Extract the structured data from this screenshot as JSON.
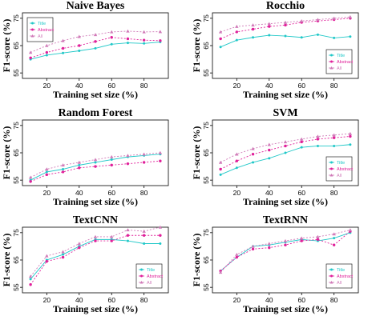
{
  "colors": {
    "Title": "#20c8c8",
    "Abstract": "#e0209a",
    "All": "#d07ab8"
  },
  "chart_data": [
    {
      "type": "line",
      "title": "Naive Bayes",
      "xlabel": "Training set size (%)",
      "ylabel": "F1-score (%)",
      "xlim": [
        5,
        95
      ],
      "ylim": [
        53,
        77
      ],
      "xticks": [
        20,
        40,
        60,
        80
      ],
      "yticks": [
        55,
        65,
        75
      ],
      "x": [
        10,
        20,
        30,
        40,
        50,
        60,
        70,
        80,
        90
      ],
      "legend": "top-left",
      "series": [
        {
          "name": "Title",
          "values": [
            60.0,
            61.5,
            62.3,
            63.1,
            64.0,
            65.5,
            66.0,
            65.8,
            66.3
          ]
        },
        {
          "name": "Abstract",
          "values": [
            60.5,
            62.5,
            64.0,
            65.0,
            66.5,
            68.0,
            67.5,
            67.0,
            66.8
          ]
        },
        {
          "name": "All",
          "values": [
            62.5,
            65.0,
            66.8,
            68.3,
            69.0,
            70.0,
            70.3,
            70.0,
            70.1
          ]
        }
      ]
    },
    {
      "type": "line",
      "title": "Rocchio",
      "xlabel": "Training set size (%)",
      "ylabel": "F1-score (%)",
      "xlim": [
        5,
        95
      ],
      "ylim": [
        53,
        77
      ],
      "xticks": [
        20,
        40,
        60,
        80
      ],
      "yticks": [
        55,
        65,
        75
      ],
      "x": [
        10,
        20,
        30,
        40,
        50,
        60,
        70,
        80,
        90
      ],
      "legend": "bottom-right",
      "series": [
        {
          "name": "Title",
          "values": [
            64.5,
            67.0,
            68.0,
            68.8,
            68.5,
            68.0,
            69.0,
            67.8,
            68.3
          ]
        },
        {
          "name": "Abstract",
          "values": [
            67.5,
            70.0,
            71.0,
            72.0,
            72.5,
            73.5,
            74.0,
            74.5,
            75.0
          ]
        },
        {
          "name": "All",
          "values": [
            70.0,
            72.0,
            72.5,
            73.0,
            73.5,
            74.0,
            74.5,
            75.0,
            75.5
          ]
        }
      ]
    },
    {
      "type": "line",
      "title": "Random Forest",
      "xlabel": "Training set size (%)",
      "ylabel": "F1-score (%)",
      "xlim": [
        5,
        95
      ],
      "ylim": [
        53,
        77
      ],
      "xticks": [
        20,
        40,
        60,
        80
      ],
      "yticks": [
        55,
        65,
        75
      ],
      "x": [
        10,
        20,
        30,
        40,
        50,
        60,
        70,
        80,
        90
      ],
      "legend": "none",
      "series": [
        {
          "name": "Title",
          "values": [
            55.0,
            58.0,
            59.0,
            60.5,
            61.5,
            62.5,
            63.5,
            64.0,
            64.5
          ]
        },
        {
          "name": "Abstract",
          "values": [
            54.5,
            57.0,
            58.0,
            59.5,
            60.0,
            60.5,
            61.0,
            61.5,
            62.0
          ]
        },
        {
          "name": "All",
          "values": [
            56.0,
            59.0,
            60.5,
            61.5,
            62.5,
            63.5,
            64.0,
            64.5,
            65.0
          ]
        }
      ]
    },
    {
      "type": "line",
      "title": "SVM",
      "xlabel": "Training set size (%)",
      "ylabel": "F1-score (%)",
      "xlim": [
        5,
        95
      ],
      "ylim": [
        53,
        77
      ],
      "xticks": [
        20,
        40,
        60,
        80
      ],
      "yticks": [
        55,
        65,
        75
      ],
      "x": [
        10,
        20,
        30,
        40,
        50,
        60,
        70,
        80,
        90
      ],
      "legend": "bottom-right",
      "series": [
        {
          "name": "Title",
          "values": [
            57.0,
            59.5,
            61.5,
            63.0,
            65.0,
            67.0,
            67.5,
            67.5,
            68.0
          ]
        },
        {
          "name": "Abstract",
          "values": [
            59.0,
            62.0,
            64.5,
            66.0,
            67.5,
            69.0,
            70.0,
            70.5,
            71.0
          ]
        },
        {
          "name": "All",
          "values": [
            61.5,
            64.5,
            66.5,
            68.0,
            69.0,
            70.0,
            71.0,
            71.5,
            72.0
          ]
        }
      ]
    },
    {
      "type": "line",
      "title": "TextCNN",
      "xlabel": "Training set size (%)",
      "ylabel": "F1-score (%)",
      "xlim": [
        5,
        95
      ],
      "ylim": [
        53,
        77
      ],
      "xticks": [
        20,
        40,
        60,
        80
      ],
      "yticks": [
        55,
        65,
        75
      ],
      "x": [
        10,
        20,
        30,
        40,
        50,
        60,
        70,
        80,
        90
      ],
      "legend": "bottom-right",
      "series": [
        {
          "name": "Title",
          "values": [
            58.0,
            65.0,
            67.0,
            70.0,
            72.5,
            72.5,
            72.0,
            71.0,
            71.0
          ]
        },
        {
          "name": "Abstract",
          "values": [
            56.0,
            64.5,
            66.0,
            69.5,
            72.0,
            72.0,
            74.0,
            74.0,
            74.0
          ]
        },
        {
          "name": "All",
          "values": [
            59.0,
            66.5,
            68.0,
            71.0,
            73.5,
            73.5,
            76.0,
            75.5,
            77.0
          ]
        }
      ]
    },
    {
      "type": "line",
      "title": "TextRNN",
      "xlabel": "Training set size (%)",
      "ylabel": "F1-score (%)",
      "xlim": [
        5,
        95
      ],
      "ylim": [
        53,
        77
      ],
      "xticks": [
        20,
        40,
        60,
        80
      ],
      "yticks": [
        55,
        65,
        75
      ],
      "x": [
        10,
        20,
        30,
        40,
        50,
        60,
        70,
        80,
        90
      ],
      "legend": "bottom-right",
      "series": [
        {
          "name": "Title",
          "values": [
            61.0,
            66.0,
            70.0,
            70.5,
            71.5,
            72.5,
            72.0,
            73.0,
            75.0
          ]
        },
        {
          "name": "Abstract",
          "values": [
            61.0,
            66.0,
            69.0,
            69.5,
            70.5,
            72.0,
            72.5,
            70.5,
            75.5
          ]
        },
        {
          "name": "All",
          "values": [
            60.5,
            67.0,
            70.0,
            71.0,
            72.0,
            73.0,
            73.5,
            74.5,
            76.0
          ]
        }
      ]
    }
  ]
}
